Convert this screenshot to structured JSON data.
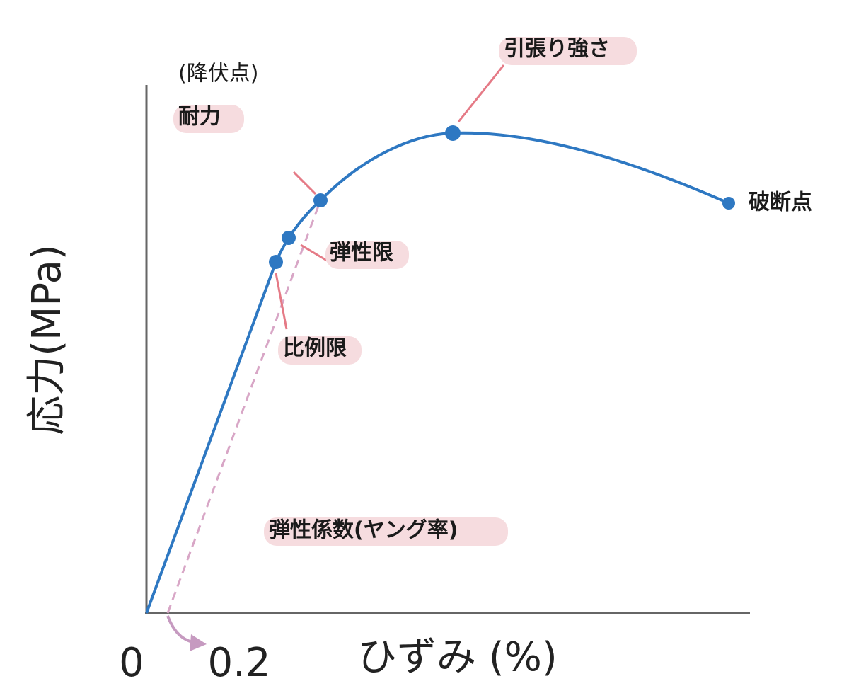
{
  "axes": {
    "y_label": "応力(MPa)",
    "x_label": "ひずみ (%)",
    "origin": "0",
    "offset_tick": "0.2"
  },
  "annotations": {
    "yield_note": "(降伏点)",
    "yield": "耐力",
    "tensile_strength": "引張り強さ",
    "fracture": "破断点",
    "elastic_limit": "弾性限",
    "proportional_limit": "比例限",
    "modulus": "弾性係数(ヤング率)"
  }
}
